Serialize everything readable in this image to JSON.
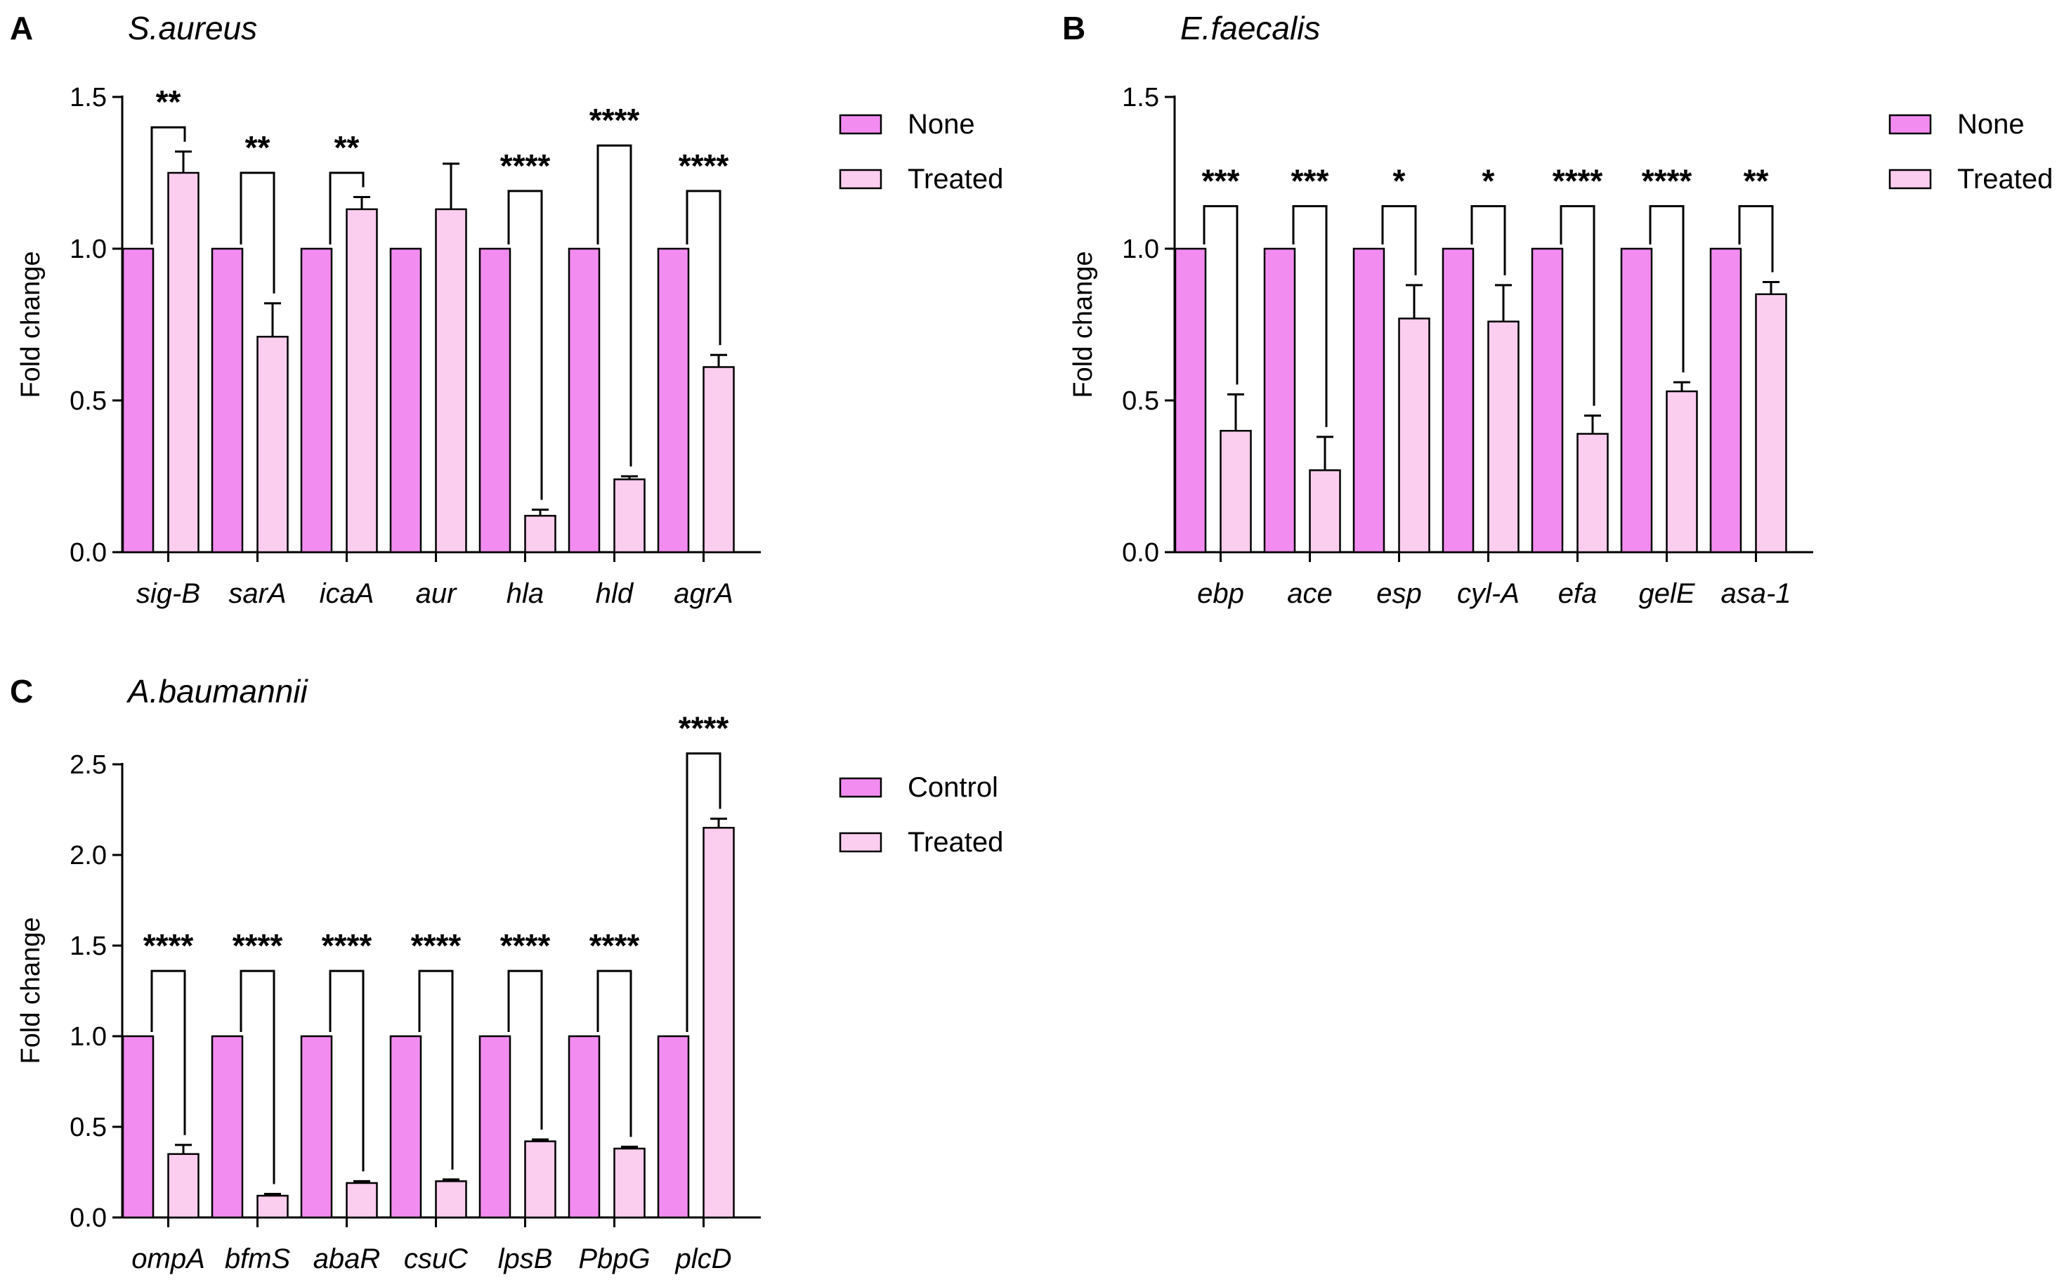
{
  "chart_data": [
    {
      "type": "bar",
      "panel": "A",
      "title": "S.aureus",
      "ylabel": "Fold change",
      "xlabel": "",
      "ylim": [
        0,
        1.5
      ],
      "yticks": [
        "0.0",
        "0.5",
        "1.0",
        "1.5"
      ],
      "categories": [
        "sig-B",
        "sarA",
        "icaA",
        "aur",
        "hla",
        "hld",
        "agrA"
      ],
      "series": [
        {
          "name": "None",
          "color": "#f28cf0",
          "values": [
            1,
            1,
            1,
            1,
            1,
            1,
            1
          ],
          "errors": [
            0,
            0,
            0,
            0,
            0,
            0,
            0
          ]
        },
        {
          "name": "Treated",
          "color": "#fbcdee",
          "values": [
            1.25,
            0.71,
            1.13,
            1.13,
            0.12,
            0.24,
            0.61
          ],
          "errors": [
            0.07,
            0.11,
            0.04,
            0.15,
            0.02,
            0.01,
            0.04
          ]
        }
      ],
      "significance": [
        "**",
        "**",
        "**",
        "",
        "****",
        "****",
        "****"
      ],
      "sig_bracket_top": [
        1.4,
        1.25,
        1.25,
        null,
        1.19,
        1.34,
        1.19
      ]
    },
    {
      "type": "bar",
      "panel": "B",
      "title": "E.faecalis",
      "ylabel": "Fold change",
      "xlabel": "",
      "ylim": [
        0,
        1.5
      ],
      "yticks": [
        "0.0",
        "0.5",
        "1.0",
        "1.5"
      ],
      "categories": [
        "ebp",
        "ace",
        "esp",
        "cyl-A",
        "efa",
        "gelE",
        "asa-1"
      ],
      "series": [
        {
          "name": "None",
          "color": "#f28cf0",
          "values": [
            1,
            1,
            1,
            1,
            1,
            1,
            1
          ],
          "errors": [
            0,
            0,
            0,
            0,
            0,
            0,
            0
          ]
        },
        {
          "name": "Treated",
          "color": "#fbcdee",
          "values": [
            0.4,
            0.27,
            0.77,
            0.76,
            0.39,
            0.53,
            0.85
          ],
          "errors": [
            0.12,
            0.11,
            0.11,
            0.12,
            0.06,
            0.03,
            0.04
          ]
        }
      ],
      "significance": [
        "***",
        "***",
        "*",
        "*",
        "****",
        "****",
        "**"
      ],
      "sig_bracket_top": [
        1.14,
        1.14,
        1.14,
        1.14,
        1.14,
        1.14,
        1.14
      ]
    },
    {
      "type": "bar",
      "panel": "C",
      "title": "A.baumannii",
      "ylabel": "Fold change",
      "xlabel": "",
      "ylim": [
        0,
        2.5
      ],
      "yticks": [
        "0.0",
        "0.5",
        "1.0",
        "1.5",
        "2.0",
        "2.5"
      ],
      "categories": [
        "ompA",
        "bfmS",
        "abaR",
        "csuC",
        "lpsB",
        "PbpG",
        "plcD"
      ],
      "series": [
        {
          "name": "Control",
          "color": "#f28cf0",
          "values": [
            1,
            1,
            1,
            1,
            1,
            1,
            1
          ],
          "errors": [
            0,
            0,
            0,
            0,
            0,
            0,
            0
          ]
        },
        {
          "name": "Treated",
          "color": "#fbcdee",
          "values": [
            0.35,
            0.12,
            0.19,
            0.2,
            0.42,
            0.38,
            2.15
          ],
          "errors": [
            0.05,
            0.01,
            0.01,
            0.01,
            0.01,
            0.01,
            0.05
          ]
        }
      ],
      "significance": [
        "****",
        "****",
        "****",
        "****",
        "****",
        "****",
        "****"
      ],
      "sig_bracket_top": [
        1.36,
        1.36,
        1.36,
        1.36,
        1.36,
        1.36,
        2.56
      ]
    }
  ]
}
